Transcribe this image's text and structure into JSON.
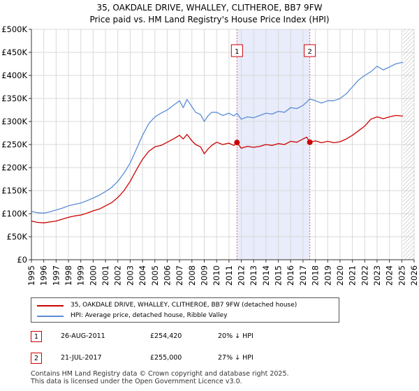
{
  "title_line1": "35, OAKDALE DRIVE, WHALLEY, CLITHEROE, BB7 9FW",
  "title_line2": "Price paid vs. HM Land Registry's House Price Index (HPI)",
  "chart_data": {
    "type": "line",
    "title": "35, OAKDALE DRIVE, WHALLEY, CLITHEROE, BB7 9FW - Price paid vs. HM Land Registry's House Price Index (HPI)",
    "xlabel": "",
    "ylabel": "",
    "xlim": [
      1995,
      2026
    ],
    "ylim": [
      0,
      500000
    ],
    "x_ticks": [
      "1995",
      "1996",
      "1997",
      "1998",
      "1999",
      "2000",
      "2001",
      "2002",
      "2003",
      "2004",
      "2005",
      "2006",
      "2007",
      "2008",
      "2009",
      "2010",
      "2011",
      "2012",
      "2013",
      "2014",
      "2015",
      "2016",
      "2017",
      "2018",
      "2019",
      "2020",
      "2021",
      "2022",
      "2023",
      "2024",
      "2025",
      "2026"
    ],
    "y_ticks": [
      {
        "value": 0,
        "label": "£0"
      },
      {
        "value": 50000,
        "label": "£50K"
      },
      {
        "value": 100000,
        "label": "£100K"
      },
      {
        "value": 150000,
        "label": "£150K"
      },
      {
        "value": 200000,
        "label": "£200K"
      },
      {
        "value": 250000,
        "label": "£250K"
      },
      {
        "value": 300000,
        "label": "£300K"
      },
      {
        "value": 350000,
        "label": "£350K"
      },
      {
        "value": 400000,
        "label": "£400K"
      },
      {
        "value": 450000,
        "label": "£450K"
      },
      {
        "value": 500000,
        "label": "£500K"
      }
    ],
    "grid": true,
    "shaded_region": {
      "from": 2011.65,
      "to": 2017.55,
      "color": "#e8ecfb"
    },
    "future_hatch_from": 2025.1,
    "series": [
      {
        "name": "35, OAKDALE DRIVE, WHALLEY, CLITHEROE, BB7 9FW (detached house)",
        "color": "#cc0000",
        "x": [
          1995,
          1995.5,
          1996,
          1996.5,
          1997,
          1997.5,
          1998,
          1998.5,
          1999,
          1999.5,
          2000,
          2000.5,
          2001,
          2001.5,
          2002,
          2002.5,
          2003,
          2003.5,
          2004,
          2004.5,
          2005,
          2005.5,
          2006,
          2006.5,
          2007,
          2007.3,
          2007.6,
          2008,
          2008.3,
          2008.7,
          2009,
          2009.3,
          2009.6,
          2010,
          2010.5,
          2011,
          2011.4,
          2011.65,
          2012,
          2012.5,
          2013,
          2013.5,
          2014,
          2014.5,
          2015,
          2015.5,
          2016,
          2016.5,
          2017,
          2017.3,
          2017.55,
          2018,
          2018.5,
          2019,
          2019.5,
          2020,
          2020.5,
          2021,
          2021.5,
          2022,
          2022.5,
          2023,
          2023.5,
          2024,
          2024.5,
          2025,
          2025.1
        ],
        "values": [
          84000,
          81000,
          80000,
          82000,
          84000,
          88000,
          92000,
          95000,
          97000,
          101000,
          106000,
          110000,
          117000,
          124000,
          135000,
          150000,
          170000,
          195000,
          218000,
          235000,
          245000,
          248000,
          255000,
          262000,
          270000,
          262000,
          272000,
          258000,
          250000,
          245000,
          230000,
          240000,
          248000,
          255000,
          250000,
          253000,
          248000,
          254420,
          242000,
          246000,
          244000,
          246000,
          250000,
          248000,
          252000,
          250000,
          257000,
          255000,
          262000,
          266000,
          255000,
          258000,
          254000,
          257000,
          254000,
          256000,
          262000,
          270000,
          280000,
          290000,
          305000,
          310000,
          306000,
          310000,
          313000,
          312000,
          312000
        ]
      },
      {
        "name": "HPI: Average price, detached house, Ribble Valley",
        "color": "#5b8dd6",
        "x": [
          1995,
          1995.5,
          1996,
          1996.5,
          1997,
          1997.5,
          1998,
          1998.5,
          1999,
          1999.5,
          2000,
          2000.5,
          2001,
          2001.5,
          2002,
          2002.5,
          2003,
          2003.5,
          2004,
          2004.5,
          2005,
          2005.5,
          2006,
          2006.5,
          2007,
          2007.3,
          2007.6,
          2008,
          2008.3,
          2008.7,
          2009,
          2009.3,
          2009.6,
          2010,
          2010.5,
          2011,
          2011.4,
          2011.65,
          2012,
          2012.5,
          2013,
          2013.5,
          2014,
          2014.5,
          2015,
          2015.5,
          2016,
          2016.5,
          2017,
          2017.3,
          2017.55,
          2018,
          2018.5,
          2019,
          2019.5,
          2020,
          2020.5,
          2021,
          2021.5,
          2022,
          2022.5,
          2023,
          2023.5,
          2024,
          2024.5,
          2025,
          2025.1
        ],
        "values": [
          105000,
          102000,
          101000,
          104000,
          108000,
          112000,
          117000,
          120000,
          123000,
          128000,
          134000,
          140000,
          148000,
          157000,
          170000,
          188000,
          210000,
          240000,
          270000,
          295000,
          310000,
          318000,
          325000,
          335000,
          345000,
          330000,
          348000,
          332000,
          320000,
          315000,
          300000,
          312000,
          320000,
          320000,
          313000,
          318000,
          312000,
          318000,
          305000,
          310000,
          308000,
          313000,
          318000,
          316000,
          322000,
          320000,
          330000,
          328000,
          335000,
          342000,
          349000,
          345000,
          340000,
          345000,
          345000,
          350000,
          360000,
          375000,
          390000,
          400000,
          408000,
          420000,
          412000,
          418000,
          425000,
          428000,
          428000
        ]
      }
    ],
    "annotations": [
      {
        "label": "1",
        "x": 2011.65,
        "value": 254420
      },
      {
        "label": "2",
        "x": 2017.55,
        "value": 255000
      }
    ]
  },
  "legend": {
    "property_label": "35, OAKDALE DRIVE, WHALLEY, CLITHEROE, BB7 9FW (detached house)",
    "hpi_label": "HPI: Average price, detached house, Ribble Valley"
  },
  "sales": [
    {
      "num": "1",
      "date": "26-AUG-2011",
      "price": "£254,420",
      "hpi": "20% ↓ HPI"
    },
    {
      "num": "2",
      "date": "21-JUL-2017",
      "price": "£255,000",
      "hpi": "27% ↓ HPI"
    }
  ],
  "footer_line1": "Contains HM Land Registry data © Crown copyright and database right 2025.",
  "footer_line2": "This data is licensed under the Open Government Licence v3.0."
}
